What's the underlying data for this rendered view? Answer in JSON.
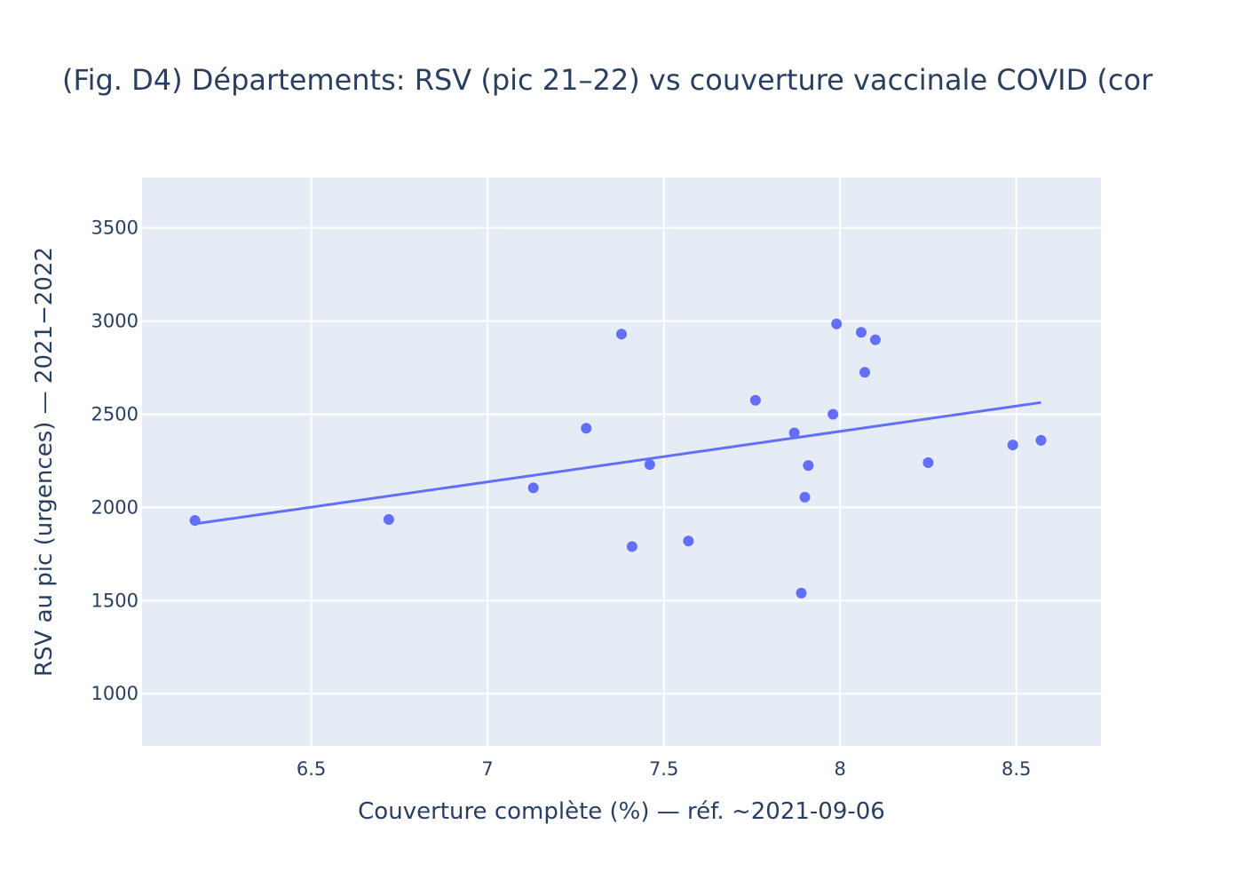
{
  "chart_data": {
    "type": "scatter",
    "title": "(Fig. D4) Départements: RSV (pic 21–22) vs couverture vaccinale COVID (cor",
    "xlabel": "Couverture complète (%) — réf. ~2021-09-06",
    "ylabel": "RSV au pic (urgences) — 2021−2022",
    "xlim": [
      6.02,
      8.74
    ],
    "ylim": [
      720,
      3770
    ],
    "xticks": [
      6.5,
      7,
      7.5,
      8,
      8.5
    ],
    "xtick_labels": [
      "6.5",
      "7",
      "7.5",
      "8",
      "8.5"
    ],
    "yticks": [
      1000,
      1500,
      2000,
      2500,
      3000,
      3500
    ],
    "ytick_labels": [
      "1000",
      "1500",
      "2000",
      "2500",
      "3000",
      "3500"
    ],
    "grid": true,
    "background": "#e5ecf6",
    "gridcolor": "#ffffff",
    "marker_color": "#636efa",
    "line_color": "#636efa",
    "series": [
      {
        "mode": "markers",
        "points": [
          {
            "x": 6.17,
            "y": 1930
          },
          {
            "x": 6.72,
            "y": 1935
          },
          {
            "x": 7.13,
            "y": 2105
          },
          {
            "x": 7.28,
            "y": 2425
          },
          {
            "x": 7.38,
            "y": 2930
          },
          {
            "x": 7.41,
            "y": 1790
          },
          {
            "x": 7.46,
            "y": 2230
          },
          {
            "x": 7.57,
            "y": 1820
          },
          {
            "x": 7.76,
            "y": 2575
          },
          {
            "x": 7.87,
            "y": 2400
          },
          {
            "x": 7.89,
            "y": 1540
          },
          {
            "x": 7.9,
            "y": 2055
          },
          {
            "x": 7.91,
            "y": 2225
          },
          {
            "x": 7.98,
            "y": 2500
          },
          {
            "x": 7.99,
            "y": 2985
          },
          {
            "x": 8.06,
            "y": 2940
          },
          {
            "x": 8.07,
            "y": 2725
          },
          {
            "x": 8.1,
            "y": 2900
          },
          {
            "x": 8.25,
            "y": 2240
          },
          {
            "x": 8.49,
            "y": 2335
          },
          {
            "x": 8.57,
            "y": 2360
          }
        ]
      },
      {
        "mode": "lines",
        "points": [
          {
            "x": 6.17,
            "y": 1912
          },
          {
            "x": 8.57,
            "y": 2563
          }
        ]
      }
    ]
  }
}
